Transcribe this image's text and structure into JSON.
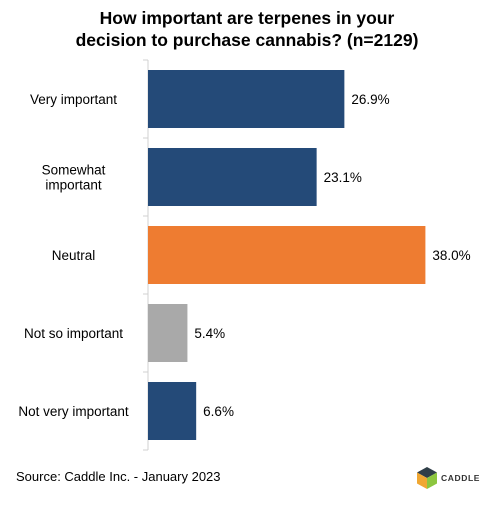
{
  "chart_data": {
    "type": "bar",
    "orientation": "horizontal",
    "title_lines": [
      "How important are terpenes in your",
      "decision to purchase cannabis? (n=2129)"
    ],
    "categories": [
      "Very important",
      "Somewhat important",
      "Neutral",
      "Not so important",
      "Not very important"
    ],
    "category_label_lines": [
      [
        "Very important"
      ],
      [
        "Somewhat",
        "important"
      ],
      [
        "Neutral"
      ],
      [
        "Not so important"
      ],
      [
        "Not very important"
      ]
    ],
    "values": [
      26.9,
      23.1,
      38.0,
      5.4,
      6.6
    ],
    "value_labels": [
      "26.9%",
      "23.1%",
      "38.0%",
      "5.4%",
      "6.6%"
    ],
    "bar_colors": [
      "#244a78",
      "#244a78",
      "#ee7c31",
      "#a9a9a9",
      "#244a78"
    ],
    "xlim": [
      0,
      40
    ],
    "grid": false,
    "legend": "none"
  },
  "footer": {
    "source": "Source: Caddle Inc. - January 2023",
    "logo_text": "CADDLE"
  },
  "colors": {
    "primary": "#244a78",
    "highlight": "#ee7c31",
    "muted": "#a9a9a9",
    "logo_orange": "#f0a732",
    "logo_green": "#8cc63f",
    "logo_dark": "#2f3e48"
  }
}
